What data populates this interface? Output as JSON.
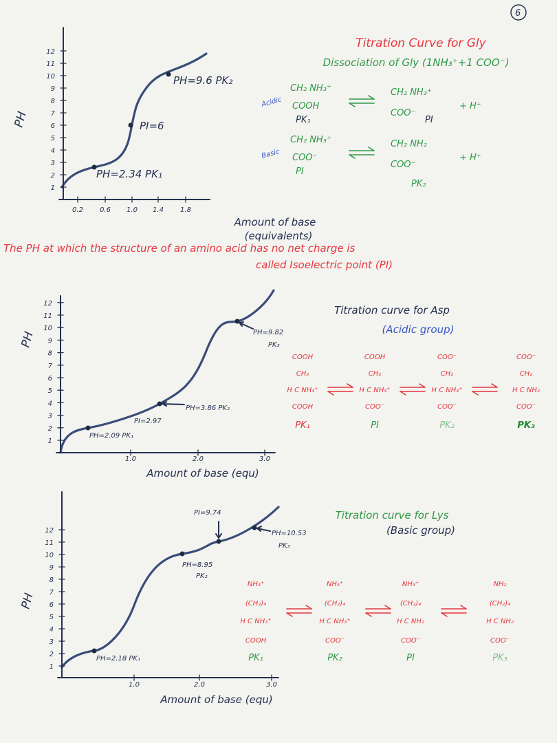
{
  "page_number": "6",
  "gly": {
    "title": "Titration Curve for Gly",
    "subtitle": "Dissociation of Gly (1NH₃⁺+1 COO⁻)",
    "y_label": "PH",
    "x_label": [
      "Amount of base",
      "(equivalents)"
    ],
    "yticks": [
      1,
      2,
      3,
      4,
      5,
      6,
      7,
      8,
      9,
      10,
      11,
      12
    ],
    "xticks": [
      "0.2",
      "0.6",
      "1.0",
      "1.4",
      "1.8"
    ],
    "annotations": [
      "PH=9.6 PK₂",
      "PI=6",
      "PH=2.34 PK₁"
    ],
    "reactions": [
      {
        "side": "Acidic",
        "reactant": [
          "CH₂ NH₃⁺",
          "COOH"
        ],
        "reactant_label": "PK₁",
        "product": [
          "CH₂ NH₃⁺",
          "COO⁻"
        ],
        "product_label": "PI",
        "released": "+ H⁺"
      },
      {
        "side": "Basic",
        "reactant": [
          "CH₂ NH₃⁺",
          "COO⁻"
        ],
        "reactant_label": "PI",
        "product": [
          "CH₂ NH₂",
          "COO⁻"
        ],
        "product_label": "PK₂",
        "released": "+ H⁺"
      }
    ]
  },
  "definition": [
    "The PH at which the structure of an amino acid has no net charge is",
    "called Isoelectric point (PI)"
  ],
  "asp": {
    "title": "Titration curve for Asp",
    "subtitle": "(Acidic group)",
    "y_label": "PH",
    "x_label": "Amount of base (equ)",
    "yticks": [
      1,
      2,
      3,
      4,
      5,
      6,
      7,
      8,
      9,
      10,
      11,
      12
    ],
    "xticks": [
      "1.0",
      "2.0",
      "3.0"
    ],
    "annotations": [
      "PH=9.82",
      "PK₃",
      "PH=3.86 PK₂",
      "PI=2.97",
      "PH=2.09 PK₁"
    ],
    "forms": [
      {
        "lines": [
          "COOH",
          "CH₂",
          "H C NH₃⁺",
          "COOH"
        ],
        "label": "PK₁"
      },
      {
        "lines": [
          "COOH",
          "CH₂",
          "H C NH₃⁺",
          "COO⁻"
        ],
        "label": "PI"
      },
      {
        "lines": [
          "COO⁻",
          "CH₂",
          "H C NH₃⁺",
          "COO⁻"
        ],
        "label": "PK₂"
      },
      {
        "lines": [
          "COO⁻",
          "CH₂",
          "H C NH₂",
          "COO⁻"
        ],
        "label": "PK₃"
      }
    ]
  },
  "lys": {
    "title": "Titration curve for Lys",
    "subtitle": "(Basic group)",
    "y_label": "PH",
    "x_label": "Amount of base (equ)",
    "yticks": [
      1,
      2,
      3,
      4,
      5,
      6,
      7,
      8,
      9,
      10,
      11,
      12
    ],
    "xticks": [
      "1.0",
      "2.0",
      "3.0"
    ],
    "annotations": [
      "PI=9.74",
      "PH=10.53",
      "PK₃",
      "PH=8.95",
      "PK₂",
      "PH=2.18 PK₁"
    ],
    "forms": [
      {
        "lines": [
          "NH₃⁺",
          "(CH₂)₄",
          "H C NH₃⁺",
          "COOH"
        ],
        "label": "PK₁"
      },
      {
        "lines": [
          "NH₃⁺",
          "(CH₂)₄",
          "H C NH₃⁺",
          "COO⁻"
        ],
        "label": "PK₂"
      },
      {
        "lines": [
          "NH₃⁺",
          "(CH₂)₄",
          "H C NH₂",
          "COO⁻"
        ],
        "label": "PI"
      },
      {
        "lines": [
          "NH₂",
          "(CH₂)₄",
          "H C NH₂",
          "COO⁻"
        ],
        "label": "PK₃"
      }
    ]
  }
}
